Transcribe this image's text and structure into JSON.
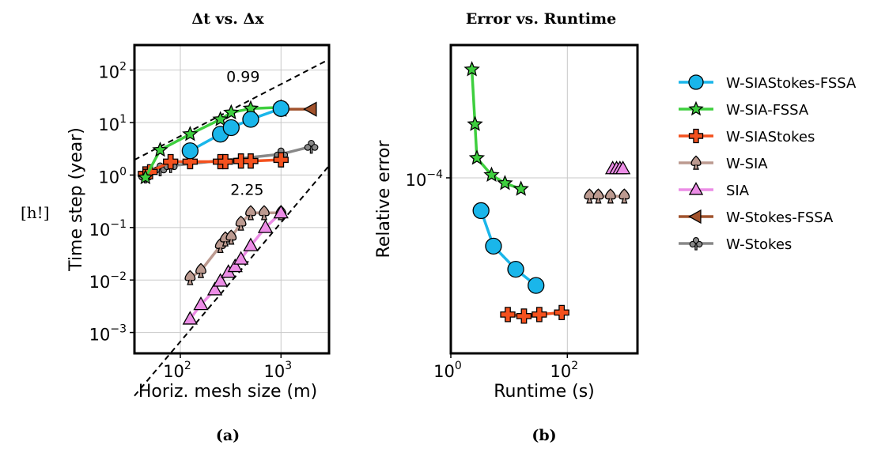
{
  "side_note": "[h!]",
  "colors": {
    "W-SIAStokes-FSSA": "#1ab6ea",
    "W-SIA-FSSA": "#3ecf3e",
    "W-SIAStokes": "#f4511e",
    "W-SIA": "#bc9a90",
    "SIA": "#ec8de6",
    "W-Stokes-FSSA": "#a1522c",
    "W-Stokes": "#888888"
  },
  "markers": {
    "W-SIAStokes-FSSA": "circle",
    "W-SIA-FSSA": "star",
    "W-SIAStokes": "plus",
    "W-SIA": "spade",
    "SIA": "triangle-up",
    "W-Stokes-FSSA": "triangle-left",
    "W-Stokes": "club"
  },
  "legend": {
    "placement": "right",
    "entries": [
      "W-SIAStokes-FSSA",
      "W-SIA-FSSA",
      "W-SIAStokes",
      "W-SIA",
      "SIA",
      "W-Stokes-FSSA",
      "W-Stokes"
    ]
  },
  "chart_data": [
    {
      "type": "line",
      "title": "Δt vs. Δx",
      "subtitle": "(a)",
      "xlabel": "Horiz. mesh size (m)",
      "ylabel": "Time step (year)",
      "xscale": "log",
      "yscale": "log",
      "xlim": [
        35,
        3000
      ],
      "ylim": [
        0.0004,
        300
      ],
      "grid": true,
      "x_ticks": [
        {
          "v": 100,
          "b": "10",
          "e": "2"
        },
        {
          "v": 1000,
          "b": "10",
          "e": "3"
        }
      ],
      "y_ticks": [
        {
          "v": 0.001,
          "b": "10",
          "e": "−3"
        },
        {
          "v": 0.01,
          "b": "10",
          "e": "−2"
        },
        {
          "v": 0.1,
          "b": "10",
          "e": "−1"
        },
        {
          "v": 1,
          "b": "10",
          "e": "0"
        },
        {
          "v": 10,
          "b": "10",
          "e": "1"
        },
        {
          "v": 100,
          "b": "10",
          "e": "2"
        }
      ],
      "reference_lines": [
        {
          "label": "0.99",
          "points": [
            [
              35,
              1.95
            ],
            [
              3000,
              160
            ]
          ],
          "label_at": [
            420,
            60
          ]
        },
        {
          "label": "2.25",
          "points": [
            [
              35,
              6.2e-05
            ],
            [
              3000,
              1.5
            ]
          ],
          "label_at": [
            460,
            0.42
          ]
        }
      ],
      "series": [
        {
          "name": "W-SIA",
          "x": [
            125,
            160,
            250,
            280,
            320,
            400,
            500,
            680,
            1000
          ],
          "y": [
            0.011,
            0.015,
            0.045,
            0.06,
            0.065,
            0.12,
            0.19,
            0.19,
            0.19
          ]
        },
        {
          "name": "SIA",
          "x": [
            125,
            160,
            220,
            250,
            300,
            350,
            400,
            500,
            700,
            1000
          ],
          "y": [
            0.0018,
            0.0034,
            0.0065,
            0.0095,
            0.014,
            0.018,
            0.025,
            0.045,
            0.1,
            0.19
          ]
        },
        {
          "name": "W-Stokes",
          "x": [
            45,
            63,
            80,
            1000,
            2000
          ],
          "y": [
            0.95,
            1.3,
            1.5,
            2.5,
            3.5
          ]
        },
        {
          "name": "W-SIAStokes",
          "x": [
            45,
            50,
            80,
            125,
            250,
            280,
            400,
            500,
            1000
          ],
          "y": [
            1.05,
            1.15,
            1.8,
            1.8,
            1.8,
            1.8,
            1.85,
            1.85,
            1.95
          ]
        },
        {
          "name": "W-Stokes-FSSA",
          "x": [
            1000,
            2000
          ],
          "y": [
            18,
            18
          ]
        },
        {
          "name": "W-SIA-FSSA",
          "x": [
            45,
            63,
            125,
            250,
            320,
            500,
            1000
          ],
          "y": [
            0.9,
            3.0,
            6.0,
            11.5,
            15.5,
            18.5,
            19.5
          ]
        },
        {
          "name": "W-SIAStokes-FSSA",
          "x": [
            125,
            250,
            320,
            500,
            1000
          ],
          "y": [
            2.9,
            6.0,
            8.0,
            11.5,
            18.5
          ]
        }
      ]
    },
    {
      "type": "line",
      "title": "Error vs. Runtime",
      "subtitle": "(b)",
      "xlabel": "Runtime (s)",
      "ylabel": "Relative error",
      "xscale": "log",
      "yscale": "log",
      "xlim": [
        1,
        1600
      ],
      "ylim": [
        1.6e-05,
        0.0004
      ],
      "grid": true,
      "x_ticks": [
        {
          "v": 1,
          "b": "10",
          "e": "0"
        },
        {
          "v": 100,
          "b": "10",
          "e": "2"
        }
      ],
      "y_ticks": [
        {
          "v": 0.0001,
          "b": "10",
          "e": "−4"
        }
      ],
      "series": [
        {
          "name": "W-SIA-FSSA",
          "x": [
            2.3,
            2.6,
            2.8,
            5.0,
            8.5,
            16
          ],
          "y": [
            0.00031,
            0.000175,
            0.000123,
            0.000103,
            9.45e-05,
            8.9e-05
          ]
        },
        {
          "name": "W-SIAStokes-FSSA",
          "x": [
            3.3,
            5.4,
            13,
            29
          ],
          "y": [
            7.1e-05,
            4.9e-05,
            3.85e-05,
            3.25e-05
          ]
        },
        {
          "name": "W-SIAStokes",
          "x": [
            9.5,
            18,
            33,
            80
          ],
          "y": [
            2.4e-05,
            2.36e-05,
            2.4e-05,
            2.45e-05
          ]
        },
        {
          "name": "W-SIA",
          "x": [
            240,
            340,
            550,
            950
          ],
          "y": [
            8.25e-05,
            8.25e-05,
            8.25e-05,
            8.25e-05
          ]
        },
        {
          "name": "SIA",
          "x": [
            600,
            700,
            800,
            900
          ],
          "y": [
            0.00011,
            0.00011,
            0.00011,
            0.00011
          ]
        }
      ]
    }
  ]
}
